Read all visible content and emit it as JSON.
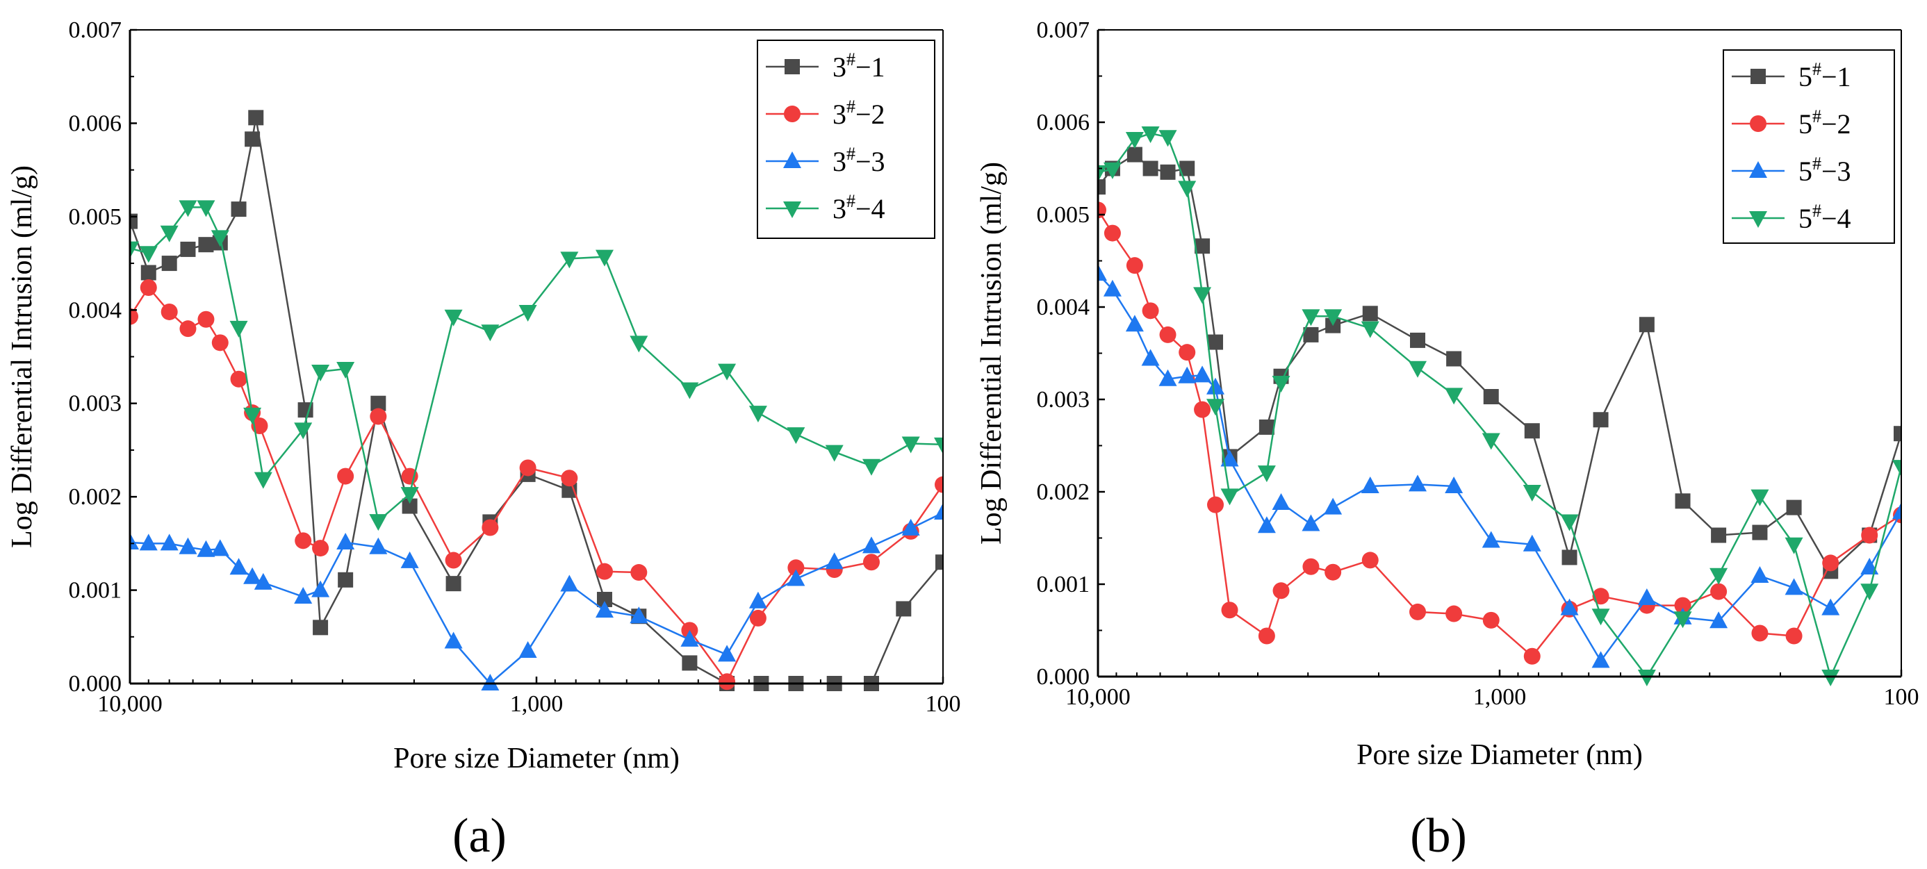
{
  "chart_data": [
    {
      "type": "line",
      "panel_label": "(a)",
      "xlabel": "Pore size Diameter (nm)",
      "ylabel": "Log Differential Intrusion (ml/g)",
      "x_scale": "log",
      "x_reversed": true,
      "xlim": [
        10000,
        100
      ],
      "ylim": [
        0,
        0.007
      ],
      "x_ticks": [
        {
          "value": 10000,
          "label": "10,000"
        },
        {
          "value": 1000,
          "label": "1,000"
        },
        {
          "value": 100,
          "label": "100"
        }
      ],
      "y_ticks": [
        {
          "value": 0,
          "label": "0.000"
        },
        {
          "value": 0.001,
          "label": "0.001"
        },
        {
          "value": 0.002,
          "label": "0.002"
        },
        {
          "value": 0.003,
          "label": "0.003"
        },
        {
          "value": 0.004,
          "label": "0.004"
        },
        {
          "value": 0.005,
          "label": "0.005"
        },
        {
          "value": 0.006,
          "label": "0.006"
        },
        {
          "value": 0.007,
          "label": "0.007"
        }
      ],
      "legend_position": "top-right",
      "series": [
        {
          "name": "3#−1",
          "base": "3",
          "sup": "#",
          "suffix": "−1",
          "color": "#4a4a4a",
          "marker": "square",
          "points": [
            [
              10000,
              0.00495
            ],
            [
              9000,
              0.0044
            ],
            [
              8000,
              0.0045
            ],
            [
              7200,
              0.00465
            ],
            [
              6500,
              0.0047
            ],
            [
              6000,
              0.00472
            ],
            [
              5400,
              0.00508
            ],
            [
              5000,
              0.00583
            ],
            [
              4900,
              0.00606
            ],
            [
              3700,
              0.00293
            ],
            [
              3400,
              0.0006
            ],
            [
              2950,
              0.00111
            ],
            [
              2450,
              0.003
            ],
            [
              2050,
              0.0019
            ],
            [
              1600,
              0.00107
            ],
            [
              1300,
              0.00173
            ],
            [
              1050,
              0.00224
            ],
            [
              830,
              0.00207
            ],
            [
              680,
              0.0009
            ],
            [
              560,
              0.00072
            ],
            [
              420,
              0.00022
            ],
            [
              340,
              0.0
            ],
            [
              280,
              0.0
            ],
            [
              230,
              0.0
            ],
            [
              185,
              0.0
            ],
            [
              150,
              0.0
            ],
            [
              125,
              0.0008
            ],
            [
              100,
              0.0013
            ]
          ]
        },
        {
          "name": "3#−2",
          "base": "3",
          "sup": "#",
          "suffix": "−2",
          "color": "#f03c3c",
          "marker": "circle",
          "points": [
            [
              10000,
              0.00393
            ],
            [
              9000,
              0.00424
            ],
            [
              8000,
              0.00398
            ],
            [
              7200,
              0.0038
            ],
            [
              6500,
              0.0039
            ],
            [
              6000,
              0.00365
            ],
            [
              5400,
              0.00326
            ],
            [
              5000,
              0.0029
            ],
            [
              4800,
              0.00276
            ],
            [
              3750,
              0.00153
            ],
            [
              3400,
              0.00145
            ],
            [
              2950,
              0.00222
            ],
            [
              2450,
              0.00286
            ],
            [
              2050,
              0.00222
            ],
            [
              1600,
              0.00132
            ],
            [
              1300,
              0.00167
            ],
            [
              1050,
              0.00231
            ],
            [
              830,
              0.0022
            ],
            [
              680,
              0.0012
            ],
            [
              560,
              0.00119
            ],
            [
              420,
              0.00057
            ],
            [
              340,
              2e-05
            ],
            [
              285,
              0.0007
            ],
            [
              230,
              0.00124
            ],
            [
              185,
              0.00122
            ],
            [
              150,
              0.0013
            ],
            [
              120,
              0.00163
            ],
            [
              100,
              0.00213
            ]
          ]
        },
        {
          "name": "3#−3",
          "base": "3",
          "sup": "#",
          "suffix": "−3",
          "color": "#1e78f0",
          "marker": "triangle-up",
          "points": [
            [
              10000,
              0.00151
            ],
            [
              9000,
              0.0015
            ],
            [
              8000,
              0.0015
            ],
            [
              7200,
              0.00146
            ],
            [
              6500,
              0.00143
            ],
            [
              6000,
              0.00144
            ],
            [
              5400,
              0.00124
            ],
            [
              5000,
              0.00114
            ],
            [
              4700,
              0.00108
            ],
            [
              3750,
              0.00093
            ],
            [
              3400,
              0.001
            ],
            [
              2950,
              0.00151
            ],
            [
              2450,
              0.00146
            ],
            [
              2050,
              0.00131
            ],
            [
              1600,
              0.00045
            ],
            [
              1300,
              0.0
            ],
            [
              1050,
              0.00035
            ],
            [
              830,
              0.00106
            ],
            [
              680,
              0.00078
            ],
            [
              560,
              0.00072
            ],
            [
              420,
              0.00047
            ],
            [
              340,
              0.00031
            ],
            [
              285,
              0.00088
            ],
            [
              230,
              0.00112
            ],
            [
              185,
              0.0013
            ],
            [
              150,
              0.00147
            ],
            [
              120,
              0.00166
            ],
            [
              100,
              0.00183
            ]
          ]
        },
        {
          "name": "3#−4",
          "base": "3",
          "sup": "#",
          "suffix": "−4",
          "color": "#1fa86a",
          "marker": "triangle-down",
          "points": [
            [
              10000,
              0.00466
            ],
            [
              9000,
              0.00461
            ],
            [
              8000,
              0.00483
            ],
            [
              7200,
              0.0051
            ],
            [
              6500,
              0.0051
            ],
            [
              6000,
              0.00478
            ],
            [
              5400,
              0.00381
            ],
            [
              5000,
              0.00288
            ],
            [
              4700,
              0.00219
            ],
            [
              3750,
              0.00272
            ],
            [
              3400,
              0.00334
            ],
            [
              2950,
              0.00337
            ],
            [
              2450,
              0.00174
            ],
            [
              2050,
              0.00203
            ],
            [
              1600,
              0.00393
            ],
            [
              1300,
              0.00377
            ],
            [
              1050,
              0.00398
            ],
            [
              830,
              0.00455
            ],
            [
              680,
              0.00457
            ],
            [
              560,
              0.00365
            ],
            [
              420,
              0.00315
            ],
            [
              340,
              0.00335
            ],
            [
              285,
              0.0029
            ],
            [
              230,
              0.00267
            ],
            [
              185,
              0.00248
            ],
            [
              150,
              0.00233
            ],
            [
              120,
              0.00257
            ],
            [
              100,
              0.00256
            ]
          ]
        }
      ]
    },
    {
      "type": "line",
      "panel_label": "(b)",
      "xlabel": "Pore size Diameter (nm)",
      "ylabel": "Log Differential Intrusion (ml/g)",
      "x_scale": "log",
      "x_reversed": true,
      "xlim": [
        10000,
        100
      ],
      "ylim": [
        0,
        0.007
      ],
      "x_ticks": [
        {
          "value": 10000,
          "label": "10,000"
        },
        {
          "value": 1000,
          "label": "1,000"
        },
        {
          "value": 100,
          "label": "100"
        }
      ],
      "y_ticks": [
        {
          "value": 0,
          "label": "0.000"
        },
        {
          "value": 0.001,
          "label": "0.001"
        },
        {
          "value": 0.002,
          "label": "0.002"
        },
        {
          "value": 0.003,
          "label": "0.003"
        },
        {
          "value": 0.004,
          "label": "0.004"
        },
        {
          "value": 0.005,
          "label": "0.005"
        },
        {
          "value": 0.006,
          "label": "0.006"
        },
        {
          "value": 0.007,
          "label": "0.007"
        }
      ],
      "legend_position": "top-right",
      "series": [
        {
          "name": "5#−1",
          "base": "5",
          "sup": "#",
          "suffix": "−1",
          "color": "#4a4a4a",
          "marker": "square",
          "points": [
            [
              10000,
              0.0053
            ],
            [
              9200,
              0.0055
            ],
            [
              8100,
              0.00565
            ],
            [
              7400,
              0.0055
            ],
            [
              6700,
              0.00546
            ],
            [
              6000,
              0.0055
            ],
            [
              5500,
              0.00466
            ],
            [
              5100,
              0.00362
            ],
            [
              4700,
              0.00238
            ],
            [
              3800,
              0.0027
            ],
            [
              3500,
              0.00325
            ],
            [
              2950,
              0.0037
            ],
            [
              2600,
              0.0038
            ],
            [
              2100,
              0.00393
            ],
            [
              1600,
              0.00364
            ],
            [
              1300,
              0.00344
            ],
            [
              1050,
              0.00303
            ],
            [
              830,
              0.00266
            ],
            [
              670,
              0.00129
            ],
            [
              560,
              0.00278
            ],
            [
              430,
              0.00381
            ],
            [
              350,
              0.0019
            ],
            [
              285,
              0.00153
            ],
            [
              225,
              0.00156
            ],
            [
              185,
              0.00183
            ],
            [
              150,
              0.00114
            ],
            [
              120,
              0.00153
            ],
            [
              100,
              0.00263
            ]
          ]
        },
        {
          "name": "5#−2",
          "base": "5",
          "sup": "#",
          "suffix": "−2",
          "color": "#f03c3c",
          "marker": "circle",
          "points": [
            [
              10000,
              0.00505
            ],
            [
              9200,
              0.0048
            ],
            [
              8100,
              0.00445
            ],
            [
              7400,
              0.00396
            ],
            [
              6700,
              0.0037
            ],
            [
              6000,
              0.00351
            ],
            [
              5500,
              0.00289
            ],
            [
              5100,
              0.00186
            ],
            [
              4700,
              0.00072
            ],
            [
              3800,
              0.00044
            ],
            [
              3500,
              0.00093
            ],
            [
              2950,
              0.00119
            ],
            [
              2600,
              0.00113
            ],
            [
              2100,
              0.00126
            ],
            [
              1600,
              0.0007
            ],
            [
              1300,
              0.00068
            ],
            [
              1050,
              0.00061
            ],
            [
              830,
              0.00022
            ],
            [
              670,
              0.00073
            ],
            [
              560,
              0.00087
            ],
            [
              430,
              0.00077
            ],
            [
              350,
              0.00077
            ],
            [
              285,
              0.00092
            ],
            [
              225,
              0.00047
            ],
            [
              185,
              0.00044
            ],
            [
              150,
              0.00123
            ],
            [
              120,
              0.00153
            ],
            [
              100,
              0.00175
            ]
          ]
        },
        {
          "name": "5#−3",
          "base": "5",
          "sup": "#",
          "suffix": "−3",
          "color": "#1e78f0",
          "marker": "triangle-up",
          "points": [
            [
              10000,
              0.00436
            ],
            [
              9200,
              0.00419
            ],
            [
              8100,
              0.00381
            ],
            [
              7400,
              0.00344
            ],
            [
              6700,
              0.00322
            ],
            [
              6000,
              0.00325
            ],
            [
              5500,
              0.00326
            ],
            [
              5100,
              0.00313
            ],
            [
              4700,
              0.00235
            ],
            [
              3800,
              0.00163
            ],
            [
              3500,
              0.00188
            ],
            [
              2950,
              0.00165
            ],
            [
              2600,
              0.00183
            ],
            [
              2100,
              0.00206
            ],
            [
              1600,
              0.00208
            ],
            [
              1300,
              0.00206
            ],
            [
              1050,
              0.00147
            ],
            [
              830,
              0.00143
            ],
            [
              670,
              0.00074
            ],
            [
              560,
              0.00017
            ],
            [
              430,
              0.00085
            ],
            [
              350,
              0.00064
            ],
            [
              285,
              0.0006
            ],
            [
              225,
              0.00109
            ],
            [
              185,
              0.00096
            ],
            [
              150,
              0.00074
            ],
            [
              120,
              0.00118
            ],
            [
              100,
              0.00178
            ]
          ]
        },
        {
          "name": "5#−4",
          "base": "5",
          "sup": "#",
          "suffix": "−4",
          "color": "#1fa86a",
          "marker": "triangle-down",
          "points": [
            [
              10000,
              0.00546
            ],
            [
              9200,
              0.00549
            ],
            [
              8100,
              0.00582
            ],
            [
              7400,
              0.00588
            ],
            [
              6700,
              0.00584
            ],
            [
              6000,
              0.00529
            ],
            [
              5500,
              0.00414
            ],
            [
              5100,
              0.00293
            ],
            [
              4700,
              0.00196
            ],
            [
              3800,
              0.00221
            ],
            [
              3500,
              0.00318
            ],
            [
              2950,
              0.0039
            ],
            [
              2600,
              0.0039
            ],
            [
              2100,
              0.00377
            ],
            [
              1600,
              0.00334
            ],
            [
              1300,
              0.00305
            ],
            [
              1050,
              0.00256
            ],
            [
              830,
              0.002
            ],
            [
              670,
              0.00168
            ],
            [
              560,
              0.00066
            ],
            [
              430,
              0.0
            ],
            [
              350,
              0.00063
            ],
            [
              285,
              0.0011
            ],
            [
              225,
              0.00195
            ],
            [
              185,
              0.00143
            ],
            [
              150,
              0.0
            ],
            [
              120,
              0.00093
            ],
            [
              100,
              0.00227
            ]
          ]
        }
      ]
    }
  ]
}
